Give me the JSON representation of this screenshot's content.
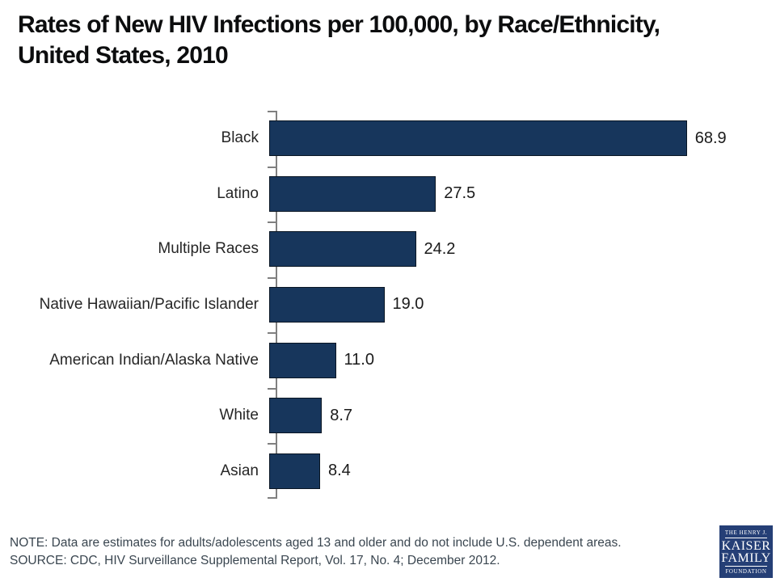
{
  "title": {
    "line1": "Rates of New HIV Infections per 100,000, by Race/Ethnicity,",
    "line2": "United States, 2010"
  },
  "chart_data": {
    "type": "bar",
    "orientation": "horizontal",
    "title": "Rates of New HIV Infections per 100,000, by Race/Ethnicity, United States, 2010",
    "categories": [
      "Black",
      "Latino",
      "Multiple Races",
      "Native Hawaiian/Pacific Islander",
      "American Indian/Alaska Native",
      "White",
      "Asian"
    ],
    "values": [
      68.9,
      27.5,
      24.2,
      19.0,
      11.0,
      8.7,
      8.4
    ],
    "value_labels": [
      "68.9",
      "27.5",
      "24.2",
      "19.0",
      "11.0",
      "8.7",
      "8.4"
    ],
    "xlabel": "",
    "ylabel": "",
    "xlim": [
      0,
      82
    ],
    "grid": false,
    "legend": false,
    "bar_color": "#17365c",
    "bar_border_color": "#0a1624",
    "axis_color": "#808080",
    "label_color": "#262626",
    "value_label_color": "#1a1a1a"
  },
  "footnote": {
    "note": "NOTE: Data are estimates for adults/adolescents aged 13 and older and do not include U.S. dependent areas.",
    "source": "SOURCE: CDC, HIV Surveillance Supplemental Report, Vol. 17, No. 4; December 2012."
  },
  "logo": {
    "line1": "THE HENRY J.",
    "line2": "KAISER",
    "line3": "FAMILY",
    "line4": "FOUNDATION",
    "bg_color": "#253f76"
  }
}
